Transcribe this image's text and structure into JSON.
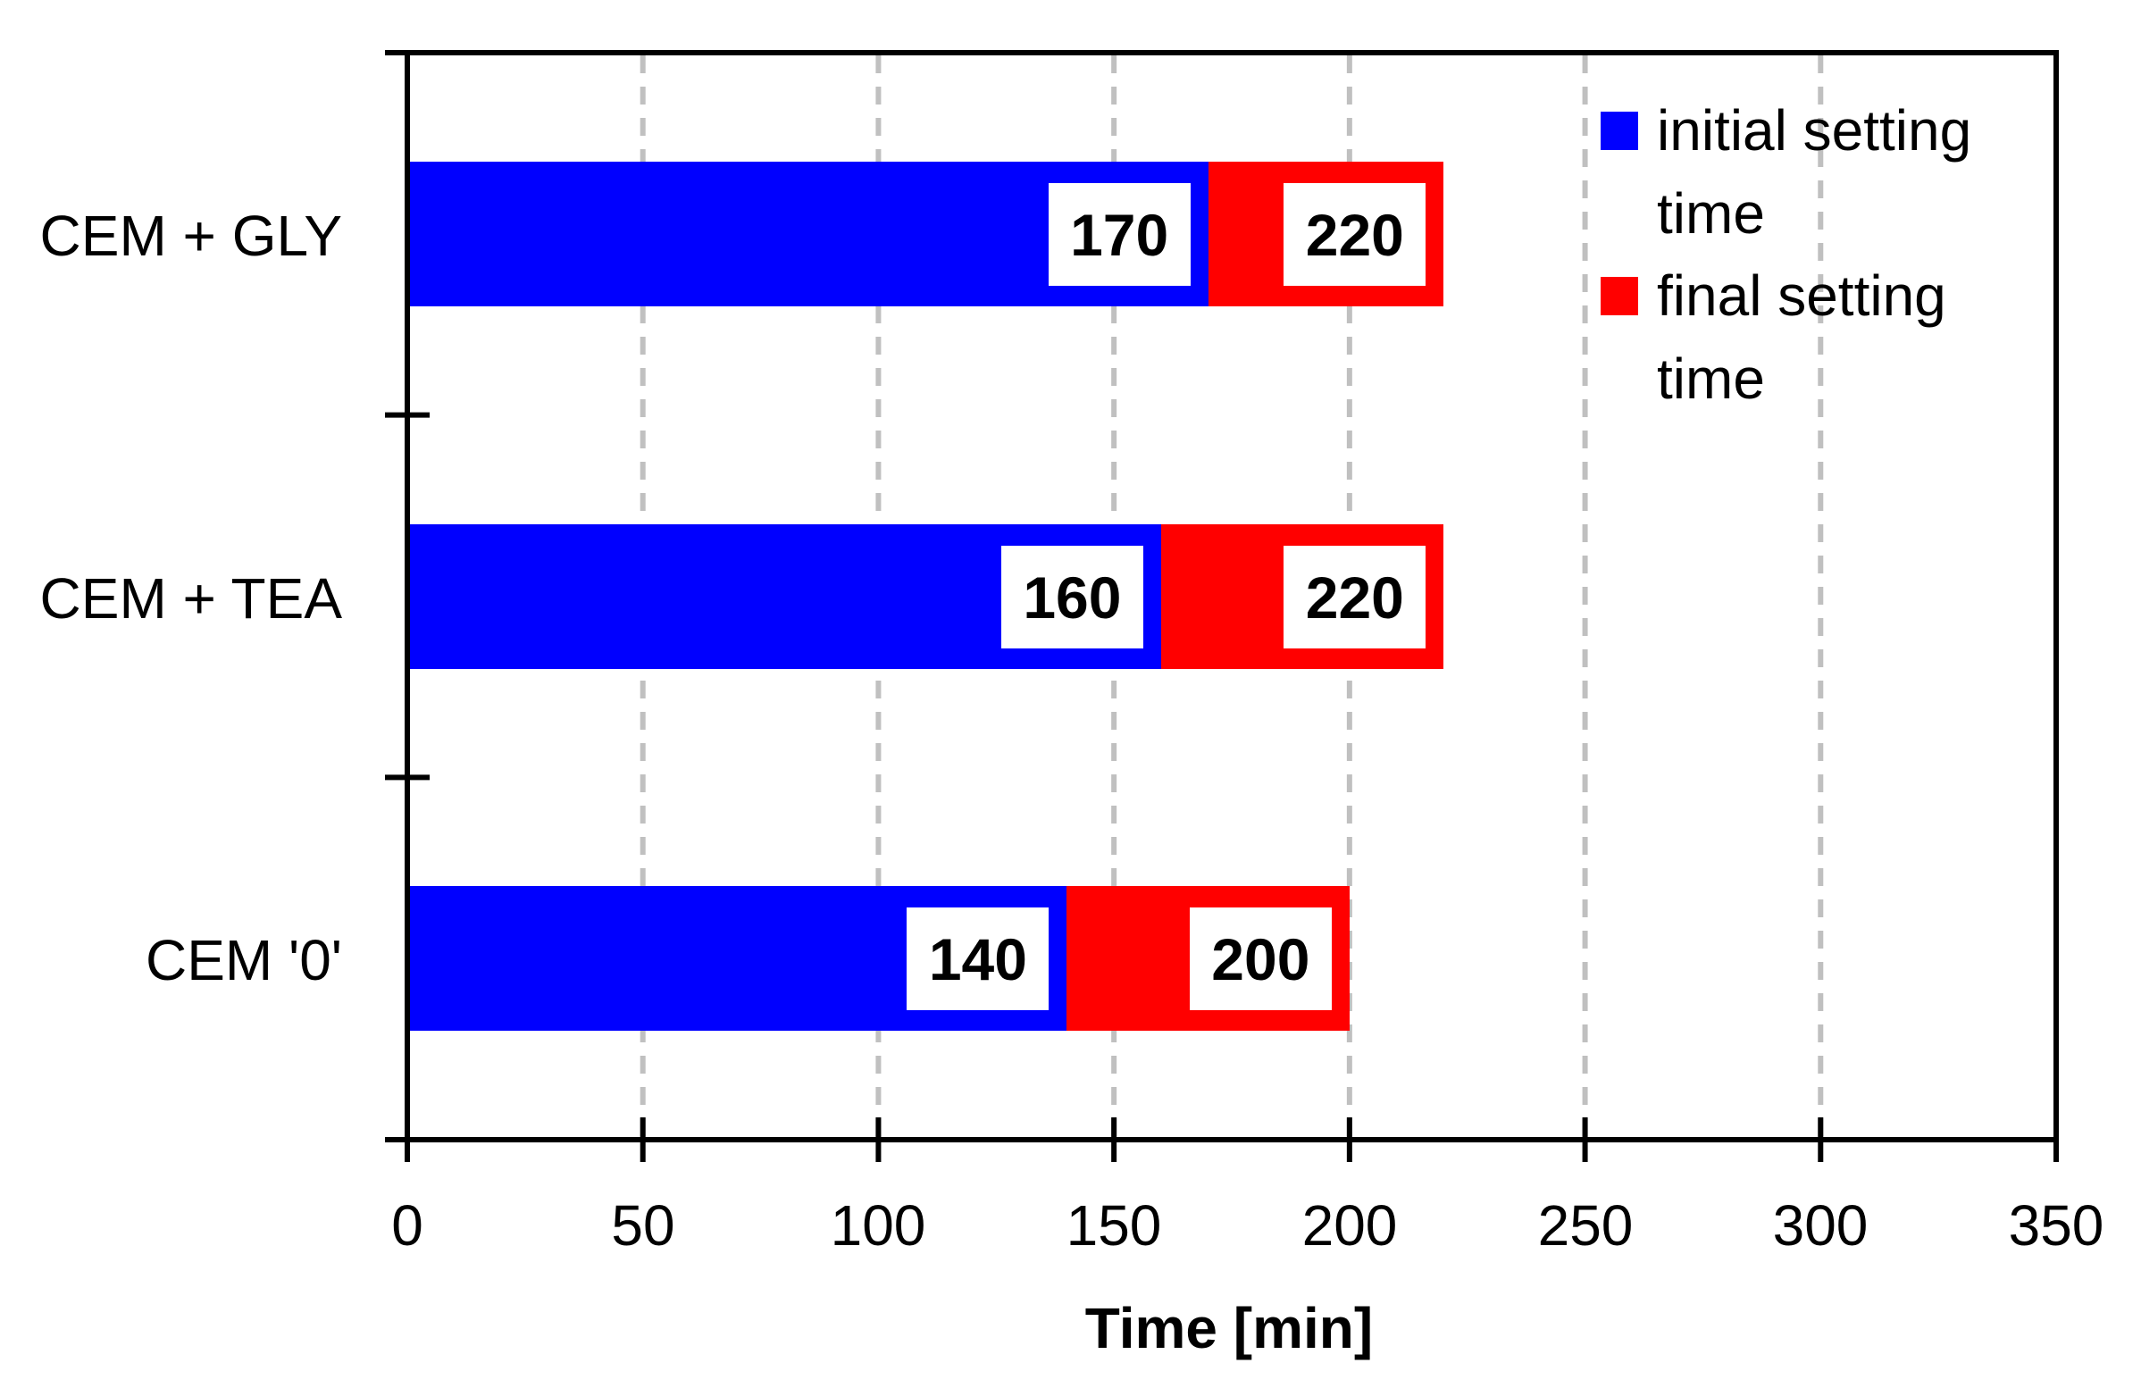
{
  "chart_data": {
    "type": "bar",
    "orientation": "horizontal",
    "stacked_overlay": true,
    "title": "",
    "xlabel": "Time [min]",
    "ylabel": "",
    "xlim": [
      0,
      350
    ],
    "xticks": [
      0,
      50,
      100,
      150,
      200,
      250,
      300,
      350
    ],
    "grid": {
      "x": true,
      "style": "dashed",
      "color": "#c0c0c0"
    },
    "legend_position": "top-right (inside)",
    "categories": [
      "CEM + GLY",
      "CEM + TEA",
      "CEM '0'"
    ],
    "series": [
      {
        "name": "initial setting time",
        "color": "#0000ff",
        "values": [
          170,
          160,
          140
        ]
      },
      {
        "name": "final setting time",
        "color": "#ff0000",
        "values": [
          220,
          220,
          200
        ]
      }
    ],
    "data_labels": true
  },
  "axis": {
    "x_title": "Time [min]",
    "x_ticks": [
      "0",
      "50",
      "100",
      "150",
      "200",
      "250",
      "300",
      "350"
    ]
  },
  "bars": [
    {
      "category": "CEM + GLY",
      "initial": 170,
      "final": 220,
      "initial_label": "170",
      "final_label": "220"
    },
    {
      "category": "CEM + TEA",
      "initial": 160,
      "final": 220,
      "initial_label": "160",
      "final_label": "220"
    },
    {
      "category": "CEM '0'",
      "initial": 140,
      "final": 200,
      "initial_label": "140",
      "final_label": "200"
    }
  ],
  "legend": {
    "items": [
      {
        "line1": "initial setting",
        "line2": "time",
        "color": "#0000ff"
      },
      {
        "line1": "final setting",
        "line2": "time",
        "color": "#ff0000"
      }
    ]
  },
  "colors": {
    "initial": "#0000ff",
    "final": "#ff0000",
    "grid": "#c0c0c0",
    "axis": "#000000"
  }
}
